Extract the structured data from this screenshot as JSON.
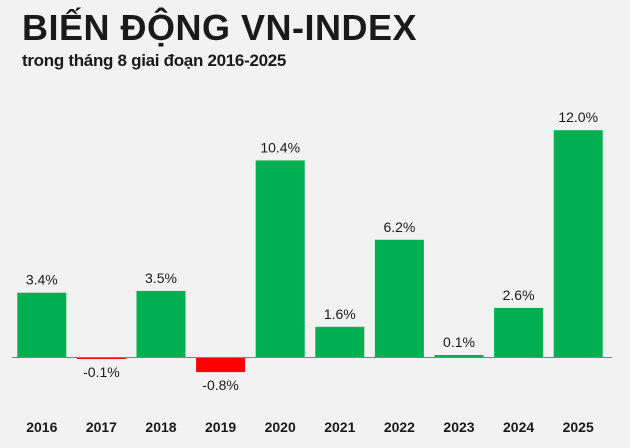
{
  "header": {
    "title": "BIẾN ĐỘNG VN-INDEX",
    "subtitle": "trong tháng 8 giai đoạn 2016-2025"
  },
  "colors": {
    "positive": "#00b050",
    "negative": "#ff0000",
    "background": "#f2f2f2",
    "axis": "#7f7f7f"
  },
  "chart_data": {
    "type": "bar",
    "title": "BIẾN ĐỘNG VN-INDEX",
    "subtitle": "trong tháng 8 giai đoạn 2016-2025",
    "categories": [
      "2016",
      "2017",
      "2018",
      "2019",
      "2020",
      "2021",
      "2022",
      "2023",
      "2024",
      "2025"
    ],
    "values": [
      3.4,
      -0.1,
      3.5,
      -0.8,
      10.4,
      1.6,
      6.2,
      0.1,
      2.6,
      12.0
    ],
    "data_labels": [
      "3.4%",
      "-0.1%",
      "3.5%",
      "-0.8%",
      "10.4%",
      "1.6%",
      "6.2%",
      "0.1%",
      "2.6%",
      "12.0%"
    ],
    "unit": "%",
    "ylim": [
      -1.2,
      12.0
    ],
    "grid": false,
    "legend": "none"
  }
}
